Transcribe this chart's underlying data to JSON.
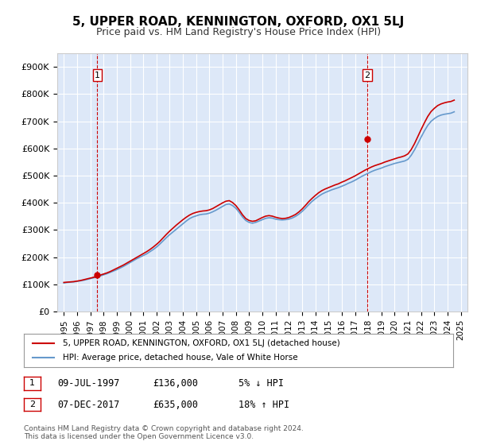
{
  "title": "5, UPPER ROAD, KENNINGTON, OXFORD, OX1 5LJ",
  "subtitle": "Price paid vs. HM Land Registry's House Price Index (HPI)",
  "title_fontsize": 12,
  "subtitle_fontsize": 10,
  "background_color": "#ffffff",
  "plot_background": "#dde8f8",
  "grid_color": "#ffffff",
  "ylabel_ticks": [
    "£0",
    "£100K",
    "£200K",
    "£300K",
    "£400K",
    "£500K",
    "£600K",
    "£700K",
    "£800K",
    "£900K"
  ],
  "ytick_values": [
    0,
    100000,
    200000,
    300000,
    400000,
    500000,
    600000,
    700000,
    800000,
    900000
  ],
  "xlim_start": 1994.5,
  "xlim_end": 2025.5,
  "ylim": [
    0,
    950000
  ],
  "purchase1": {
    "date_year": 1997.52,
    "price": 136000,
    "label": "1"
  },
  "purchase2": {
    "date_year": 2017.92,
    "price": 635000,
    "label": "2"
  },
  "legend_line1": "5, UPPER ROAD, KENNINGTON, OXFORD, OX1 5LJ (detached house)",
  "legend_line2": "HPI: Average price, detached house, Vale of White Horse",
  "annot1_text": "1    09-JUL-1997        £136,000        5% ↓ HPI",
  "annot2_text": "2    07-DEC-2017        £635,000        18% ↑ HPI",
  "footer": "Contains HM Land Registry data © Crown copyright and database right 2024.\nThis data is licensed under the Open Government Licence v3.0.",
  "house_color": "#cc0000",
  "hpi_color": "#6699cc",
  "vline_color": "#cc0000",
  "xticks": [
    1995,
    1996,
    1997,
    1998,
    1999,
    2000,
    2001,
    2002,
    2003,
    2004,
    2005,
    2006,
    2007,
    2008,
    2009,
    2010,
    2011,
    2012,
    2013,
    2014,
    2015,
    2016,
    2017,
    2018,
    2019,
    2020,
    2021,
    2022,
    2023,
    2024,
    2025
  ],
  "hpi_data": {
    "years": [
      1995,
      1995.25,
      1995.5,
      1995.75,
      1996,
      1996.25,
      1996.5,
      1996.75,
      1997,
      1997.25,
      1997.5,
      1997.75,
      1998,
      1998.25,
      1998.5,
      1998.75,
      1999,
      1999.25,
      1999.5,
      1999.75,
      2000,
      2000.25,
      2000.5,
      2000.75,
      2001,
      2001.25,
      2001.5,
      2001.75,
      2002,
      2002.25,
      2002.5,
      2002.75,
      2003,
      2003.25,
      2003.5,
      2003.75,
      2004,
      2004.25,
      2004.5,
      2004.75,
      2005,
      2005.25,
      2005.5,
      2005.75,
      2006,
      2006.25,
      2006.5,
      2006.75,
      2007,
      2007.25,
      2007.5,
      2007.75,
      2008,
      2008.25,
      2008.5,
      2008.75,
      2009,
      2009.25,
      2009.5,
      2009.75,
      2010,
      2010.25,
      2010.5,
      2010.75,
      2011,
      2011.25,
      2011.5,
      2011.75,
      2012,
      2012.25,
      2012.5,
      2012.75,
      2013,
      2013.25,
      2013.5,
      2013.75,
      2014,
      2014.25,
      2014.5,
      2014.75,
      2015,
      2015.25,
      2015.5,
      2015.75,
      2016,
      2016.25,
      2016.5,
      2016.75,
      2017,
      2017.25,
      2017.5,
      2017.75,
      2018,
      2018.25,
      2018.5,
      2018.75,
      2019,
      2019.25,
      2019.5,
      2019.75,
      2020,
      2020.25,
      2020.5,
      2020.75,
      2021,
      2021.25,
      2021.5,
      2021.75,
      2022,
      2022.25,
      2022.5,
      2022.75,
      2023,
      2023.25,
      2023.5,
      2023.75,
      2024,
      2024.25,
      2024.5
    ],
    "values": [
      105000,
      107000,
      108000,
      109000,
      111000,
      113000,
      115000,
      118000,
      121000,
      124000,
      127000,
      131000,
      135000,
      139000,
      144000,
      149000,
      154000,
      160000,
      166000,
      173000,
      180000,
      187000,
      194000,
      200000,
      206000,
      212000,
      220000,
      228000,
      237000,
      248000,
      260000,
      272000,
      283000,
      293000,
      303000,
      313000,
      323000,
      333000,
      342000,
      348000,
      352000,
      356000,
      358000,
      359000,
      362000,
      367000,
      373000,
      380000,
      387000,
      394000,
      396000,
      390000,
      380000,
      365000,
      348000,
      335000,
      328000,
      325000,
      328000,
      333000,
      338000,
      343000,
      345000,
      344000,
      340000,
      338000,
      337000,
      338000,
      340000,
      344000,
      350000,
      358000,
      368000,
      380000,
      393000,
      405000,
      415000,
      424000,
      432000,
      438000,
      443000,
      448000,
      452000,
      456000,
      461000,
      466000,
      472000,
      477000,
      483000,
      490000,
      497000,
      503000,
      509000,
      515000,
      520000,
      524000,
      528000,
      533000,
      537000,
      541000,
      545000,
      548000,
      551000,
      554000,
      560000,
      575000,
      595000,
      618000,
      642000,
      665000,
      685000,
      700000,
      710000,
      718000,
      723000,
      726000,
      728000,
      730000,
      735000
    ]
  },
  "house_data": {
    "years": [
      1995,
      1995.25,
      1995.5,
      1995.75,
      1996,
      1996.25,
      1996.5,
      1996.75,
      1997,
      1997.25,
      1997.5,
      1997.75,
      1998,
      1998.25,
      1998.5,
      1998.75,
      1999,
      1999.25,
      1999.5,
      1999.75,
      2000,
      2000.25,
      2000.5,
      2000.75,
      2001,
      2001.25,
      2001.5,
      2001.75,
      2002,
      2002.25,
      2002.5,
      2002.75,
      2003,
      2003.25,
      2003.5,
      2003.75,
      2004,
      2004.25,
      2004.5,
      2004.75,
      2005,
      2005.25,
      2005.5,
      2005.75,
      2006,
      2006.25,
      2006.5,
      2006.75,
      2007,
      2007.25,
      2007.5,
      2007.75,
      2008,
      2008.25,
      2008.5,
      2008.75,
      2009,
      2009.25,
      2009.5,
      2009.75,
      2010,
      2010.25,
      2010.5,
      2010.75,
      2011,
      2011.25,
      2011.5,
      2011.75,
      2012,
      2012.25,
      2012.5,
      2012.75,
      2013,
      2013.25,
      2013.5,
      2013.75,
      2014,
      2014.25,
      2014.5,
      2014.75,
      2015,
      2015.25,
      2015.5,
      2015.75,
      2016,
      2016.25,
      2016.5,
      2016.75,
      2017,
      2017.25,
      2017.5,
      2017.75,
      2018,
      2018.25,
      2018.5,
      2018.75,
      2019,
      2019.25,
      2019.5,
      2019.75,
      2020,
      2020.25,
      2020.5,
      2020.75,
      2021,
      2021.25,
      2021.5,
      2021.75,
      2022,
      2022.25,
      2022.5,
      2022.75,
      2023,
      2023.25,
      2023.5,
      2023.75,
      2024,
      2024.25,
      2024.5
    ],
    "values": [
      107000,
      108000,
      109000,
      110000,
      112000,
      114000,
      117000,
      120000,
      123000,
      126000,
      130000,
      134000,
      138000,
      142000,
      147000,
      153000,
      159000,
      165000,
      171000,
      178000,
      185000,
      192000,
      199000,
      206000,
      213000,
      220000,
      228000,
      237000,
      247000,
      258000,
      271000,
      284000,
      296000,
      307000,
      318000,
      328000,
      338000,
      347000,
      355000,
      361000,
      365000,
      368000,
      370000,
      371000,
      374000,
      379000,
      386000,
      393000,
      400000,
      406000,
      408000,
      401000,
      390000,
      374000,
      356000,
      342000,
      335000,
      332000,
      334000,
      340000,
      346000,
      351000,
      353000,
      351000,
      347000,
      344000,
      342000,
      343000,
      346000,
      351000,
      357000,
      366000,
      377000,
      390000,
      404000,
      416000,
      427000,
      437000,
      445000,
      451000,
      456000,
      461000,
      466000,
      470000,
      476000,
      481000,
      487000,
      493000,
      499000,
      506000,
      513000,
      520000,
      526000,
      532000,
      537000,
      541000,
      545000,
      550000,
      554000,
      558000,
      562000,
      566000,
      569000,
      573000,
      580000,
      596000,
      618000,
      644000,
      670000,
      695000,
      718000,
      736000,
      748000,
      758000,
      764000,
      768000,
      771000,
      773000,
      778000
    ]
  }
}
